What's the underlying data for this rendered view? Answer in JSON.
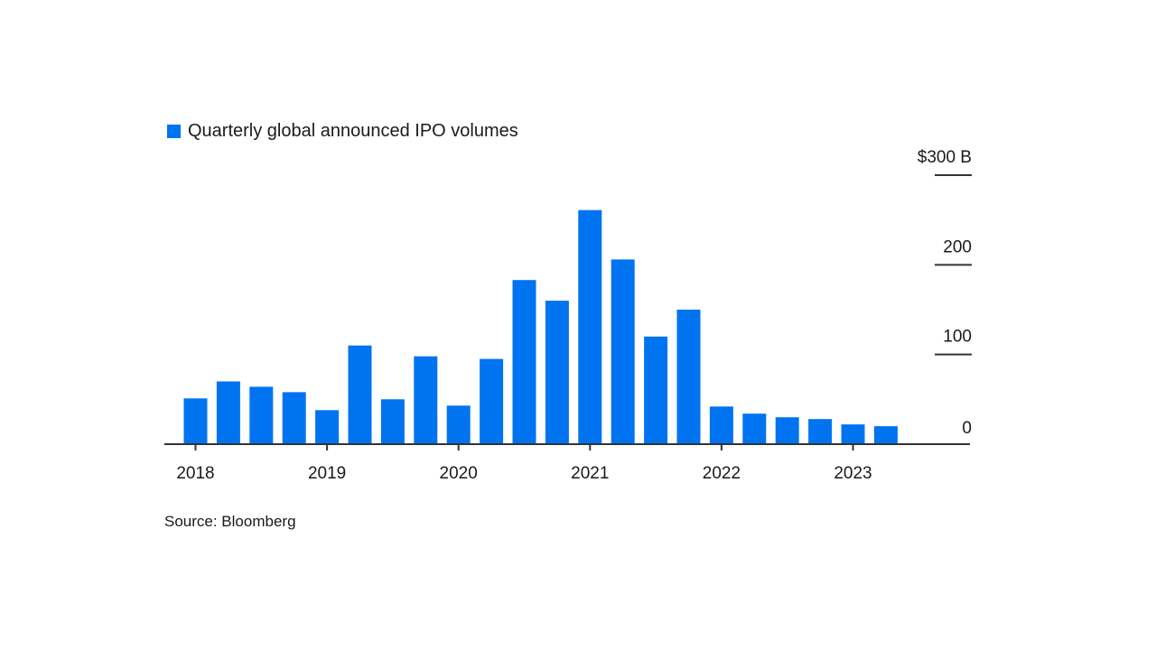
{
  "colors": {
    "bar": "#0074f0",
    "axis": "#333333",
    "text": "#1a1a1a"
  },
  "source": "Source: Bloomberg",
  "chart_data": {
    "type": "bar",
    "legend": "Quarterly global announced IPO volumes",
    "legend_position": "top-left",
    "y_axis_position": "right",
    "grid": false,
    "unit_label": "$300 B",
    "ylim": [
      0,
      300
    ],
    "yticks": [
      0,
      100,
      200,
      300
    ],
    "ytick_labels": [
      "0",
      "100",
      "200",
      "$300 B"
    ],
    "x_tick_labels": [
      "2018",
      "2019",
      "2020",
      "2021",
      "2022",
      "2023"
    ],
    "categories": [
      "2018 Q1",
      "2018 Q2",
      "2018 Q3",
      "2018 Q4",
      "2019 Q1",
      "2019 Q2",
      "2019 Q3",
      "2019 Q4",
      "2020 Q1",
      "2020 Q2",
      "2020 Q3",
      "2020 Q4",
      "2021 Q1",
      "2021 Q2",
      "2021 Q3",
      "2021 Q4",
      "2022 Q1",
      "2022 Q2",
      "2022 Q3",
      "2022 Q4",
      "2023 Q1",
      "2023 Q2"
    ],
    "values": [
      51,
      70,
      64,
      58,
      38,
      110,
      50,
      98,
      43,
      95,
      183,
      160,
      261,
      206,
      120,
      150,
      42,
      34,
      30,
      28,
      22,
      20
    ]
  }
}
